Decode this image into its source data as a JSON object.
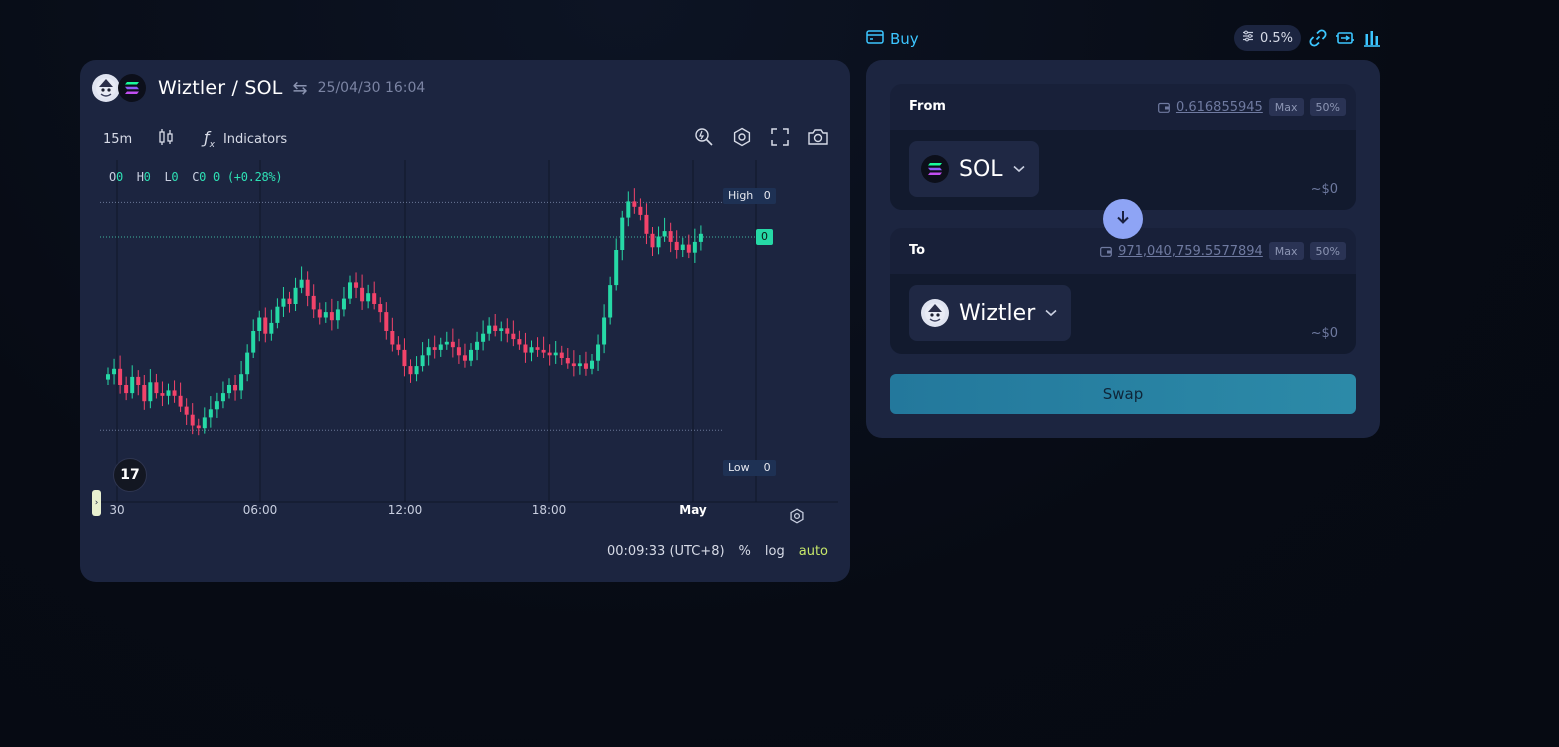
{
  "chart_panel": {
    "pair": "Wiztler / SOL",
    "timestamp": "25/04/30 16:04",
    "toolbar": {
      "interval": "15m",
      "indicators_label": "Indicators"
    },
    "ohlc": {
      "o_label": "O",
      "o_value": "0",
      "h_label": "H",
      "h_value": "0",
      "l_label": "L",
      "l_value": "0",
      "c_label": "C",
      "c_value": "0",
      "change": "0 (+0.28%)"
    },
    "price_labels": {
      "high_label": "High",
      "high_value": "0",
      "current_value": "0",
      "low_label": "Low",
      "low_value": "0"
    },
    "x_axis_labels": [
      "30",
      "06:00",
      "12:00",
      "18:00",
      "May"
    ],
    "bottom_bar": {
      "clock": "00:09:33 (UTC+8)",
      "percent": "%",
      "log": "log",
      "auto": "auto"
    },
    "colors": {
      "up": "#26d9a6",
      "down": "#f2436a"
    },
    "chart_data": {
      "type": "candlestick",
      "y_scale": "relative",
      "candles_close": [
        0.34,
        0.36,
        0.3,
        0.27,
        0.33,
        0.3,
        0.24,
        0.31,
        0.27,
        0.26,
        0.28,
        0.26,
        0.22,
        0.19,
        0.15,
        0.14,
        0.18,
        0.21,
        0.24,
        0.27,
        0.3,
        0.28,
        0.34,
        0.42,
        0.5,
        0.55,
        0.49,
        0.53,
        0.59,
        0.62,
        0.6,
        0.66,
        0.69,
        0.63,
        0.58,
        0.55,
        0.57,
        0.54,
        0.58,
        0.62,
        0.68,
        0.66,
        0.61,
        0.64,
        0.6,
        0.57,
        0.5,
        0.45,
        0.43,
        0.37,
        0.34,
        0.37,
        0.41,
        0.44,
        0.43,
        0.45,
        0.46,
        0.44,
        0.41,
        0.39,
        0.43,
        0.46,
        0.49,
        0.52,
        0.5,
        0.51,
        0.49,
        0.47,
        0.45,
        0.42,
        0.44,
        0.43,
        0.42,
        0.41,
        0.42,
        0.4,
        0.38,
        0.37,
        0.38,
        0.36,
        0.39,
        0.45,
        0.55,
        0.67,
        0.8,
        0.92,
        0.98,
        0.96,
        0.93,
        0.86,
        0.81,
        0.85,
        0.87,
        0.83,
        0.8,
        0.82,
        0.79,
        0.83,
        0.86
      ]
    }
  },
  "swap_panel": {
    "buy_label": "Buy",
    "slippage": "0.5%",
    "from": {
      "label": "From",
      "balance": "0.616855945",
      "max": "Max",
      "half": "50%",
      "token": "SOL",
      "usd": "~$0"
    },
    "to": {
      "label": "To",
      "balance": "971,040,759.5577894",
      "max": "Max",
      "half": "50%",
      "token": "Wiztler",
      "usd": "~$0"
    },
    "swap_label": "Swap"
  }
}
